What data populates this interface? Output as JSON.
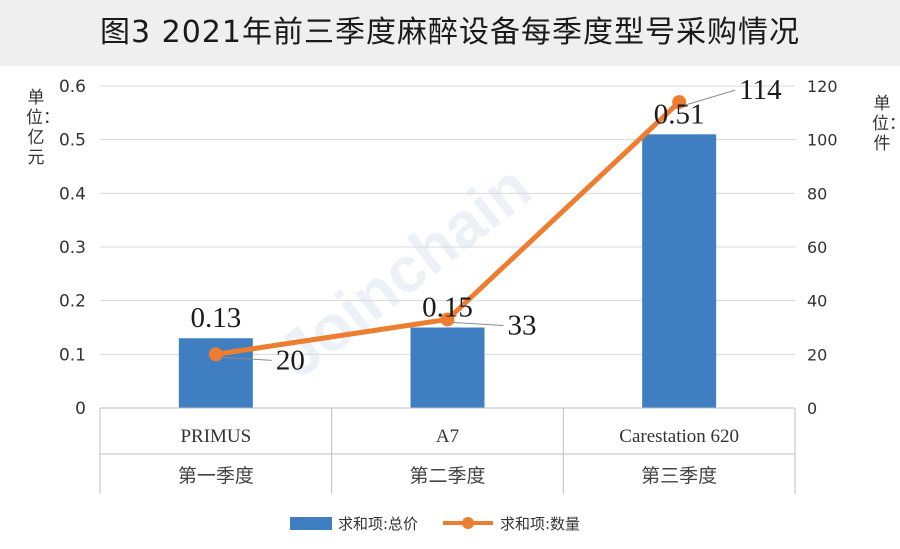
{
  "title": "图3  2021年前三季度麻醉设备每季度型号采购情况",
  "units": {
    "left": "单位：亿元",
    "right": "单位：件"
  },
  "watermark": "Joinchain",
  "chart_data": {
    "type": "bar+line",
    "categories": [
      {
        "model": "PRIMUS",
        "quarter": "第一季度"
      },
      {
        "model": "A7",
        "quarter": "第二季度"
      },
      {
        "model": "Carestation 620",
        "quarter": "第三季度"
      }
    ],
    "series": [
      {
        "name": "求和项:总价",
        "type": "bar",
        "axis": "left",
        "values": [
          0.13,
          0.15,
          0.51
        ],
        "labels": [
          "0.13",
          "0.15",
          "0.51"
        ],
        "color": "#3f7fc1"
      },
      {
        "name": "求和项:数量",
        "type": "line",
        "axis": "right",
        "values": [
          20,
          33,
          114
        ],
        "labels": [
          "20",
          "33",
          "114"
        ],
        "color": "#ed7d31"
      }
    ],
    "y_left": {
      "min": 0,
      "max": 0.6,
      "ticks": [
        "0",
        "0.1",
        "0.2",
        "0.3",
        "0.4",
        "0.5",
        "0.6"
      ]
    },
    "y_right": {
      "min": 0,
      "max": 120,
      "ticks": [
        "0",
        "20",
        "40",
        "60",
        "80",
        "100",
        "120"
      ]
    },
    "grid": true,
    "legend_position": "bottom"
  }
}
